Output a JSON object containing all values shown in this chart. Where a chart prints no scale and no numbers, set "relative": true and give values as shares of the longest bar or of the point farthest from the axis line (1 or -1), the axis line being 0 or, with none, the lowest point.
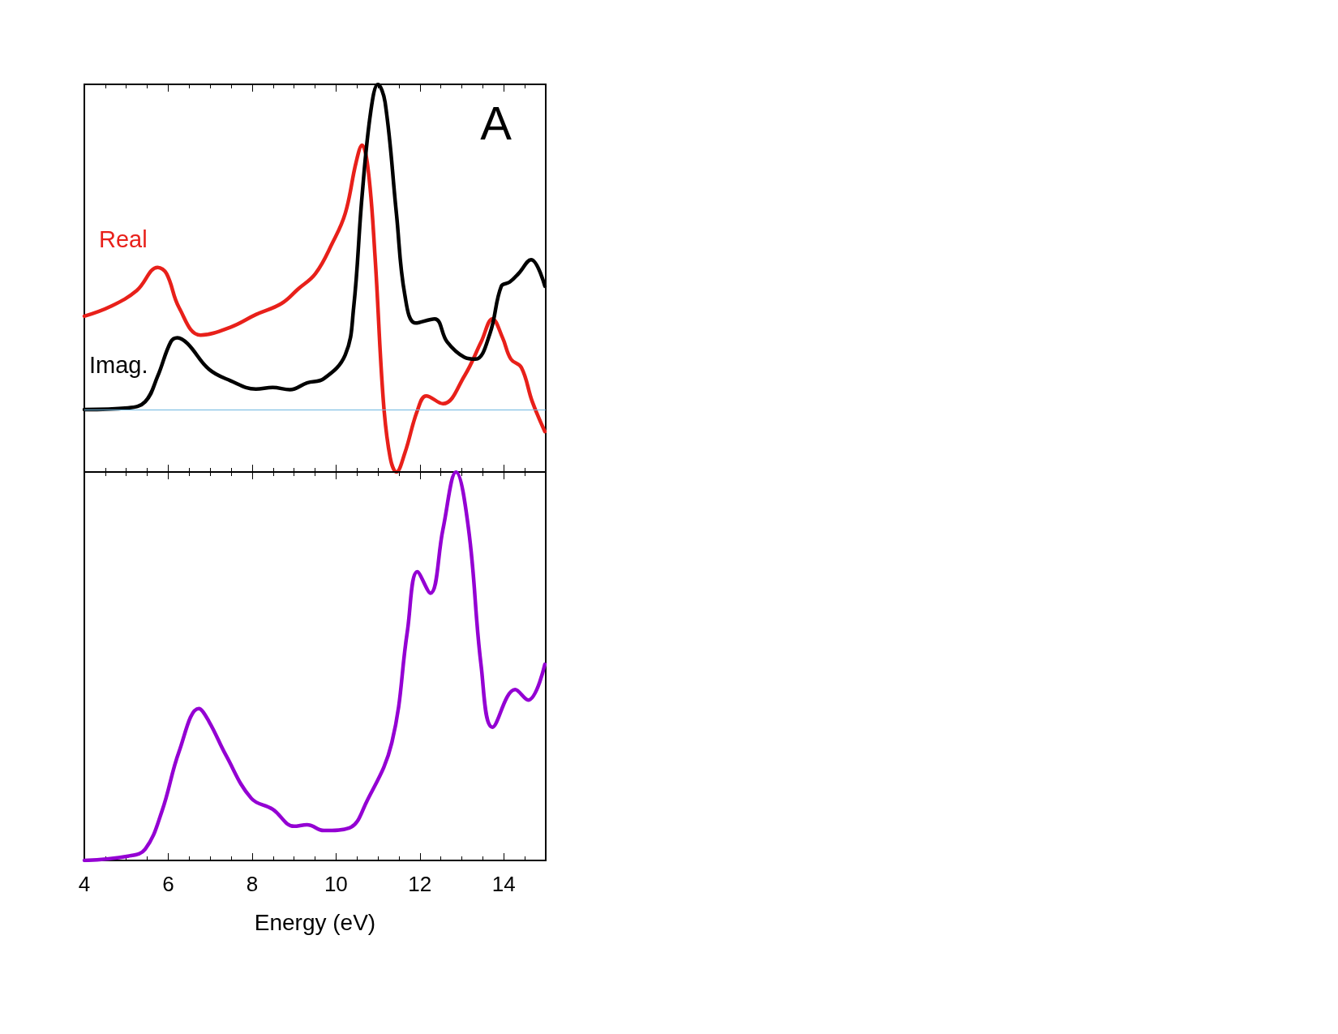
{
  "chart_data": [
    {
      "type": "line",
      "relative": true,
      "xlim": [
        4,
        15
      ],
      "xticks": [
        4,
        6,
        8,
        10,
        12,
        14
      ],
      "tick_labels": false,
      "marker": "none",
      "annotations": [
        "A"
      ],
      "ref_lines": [
        {
          "axis": "y",
          "value": 0,
          "color": "#6fb7e0"
        }
      ],
      "series": [
        {
          "name": "Real",
          "color": "#e8201a",
          "x": [
            4.0,
            4.64,
            5.25,
            5.75,
            5.96,
            6.26,
            6.77,
            7.48,
            8.09,
            8.7,
            9.1,
            9.51,
            9.91,
            10.22,
            10.48,
            10.62,
            10.77,
            10.93,
            11.13,
            11.29,
            11.44,
            11.64,
            11.94,
            12.15,
            12.55,
            13.06,
            13.46,
            13.73,
            13.97,
            14.17,
            14.42,
            14.68,
            14.98
          ],
          "values": [
            0.287,
            0.318,
            0.366,
            0.437,
            0.418,
            0.313,
            0.229,
            0.253,
            0.292,
            0.326,
            0.371,
            0.418,
            0.511,
            0.603,
            0.761,
            0.813,
            0.734,
            0.471,
            0.024,
            -0.147,
            -0.192,
            -0.134,
            -0.003,
            0.042,
            0.018,
            0.103,
            0.208,
            0.279,
            0.221,
            0.155,
            0.129,
            0.024,
            -0.068
          ]
        },
        {
          "name": "Imag.",
          "color": "#000000",
          "x": [
            4.0,
            5.04,
            5.45,
            5.75,
            6.06,
            6.22,
            6.46,
            6.97,
            7.48,
            8.09,
            8.49,
            8.9,
            9.31,
            9.71,
            10.22,
            10.42,
            10.62,
            10.83,
            11.0,
            11.17,
            11.44,
            11.64,
            11.9,
            12.35,
            12.65,
            13.06,
            13.33,
            13.67,
            13.94,
            14.14,
            14.35,
            14.65,
            14.98
          ],
          "values": [
            0.0,
            0.005,
            0.024,
            0.103,
            0.208,
            0.221,
            0.203,
            0.124,
            0.089,
            0.063,
            0.068,
            0.061,
            0.082,
            0.095,
            0.168,
            0.313,
            0.655,
            0.918,
            1.0,
            0.945,
            0.603,
            0.353,
            0.266,
            0.279,
            0.208,
            0.161,
            0.155,
            0.234,
            0.379,
            0.392,
            0.418,
            0.461,
            0.379
          ]
        }
      ]
    },
    {
      "type": "line",
      "relative": true,
      "xlabel": "Energy (eV)",
      "xlim": [
        4,
        15
      ],
      "xticks": [
        4,
        6,
        8,
        10,
        12,
        14
      ],
      "tick_labels": "x",
      "marker": "none",
      "series": [
        {
          "color": "#9400d3",
          "x": [
            4.0,
            5.04,
            5.45,
            5.85,
            6.26,
            6.73,
            6.97,
            7.38,
            7.98,
            8.49,
            9.0,
            9.31,
            9.71,
            10.32,
            10.72,
            11.33,
            11.7,
            11.94,
            12.25,
            12.55,
            12.86,
            13.16,
            13.46,
            13.73,
            14.27,
            14.58,
            14.98
          ],
          "values": [
            0,
            0.011,
            0.029,
            0.127,
            0.281,
            0.391,
            0.358,
            0.27,
            0.16,
            0.132,
            0.088,
            0.092,
            0.077,
            0.084,
            0.149,
            0.303,
            0.589,
            0.743,
            0.688,
            0.853,
            1.0,
            0.853,
            0.501,
            0.343,
            0.44,
            0.413,
            0.505
          ]
        }
      ]
    }
  ]
}
